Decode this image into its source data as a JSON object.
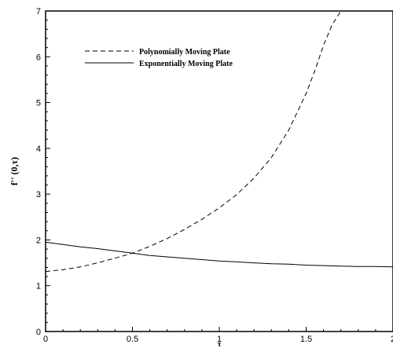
{
  "chart_data": {
    "type": "line",
    "title": "",
    "xlabel": "τ",
    "ylabel": "f'' (0,τ)",
    "xlim": [
      0,
      2
    ],
    "ylim": [
      0,
      7
    ],
    "x_ticks": [
      0,
      0.5,
      1,
      1.5,
      2
    ],
    "x_tick_labels": [
      "0",
      "0.5",
      "1",
      "1.5",
      "2"
    ],
    "y_ticks": [
      0,
      1,
      2,
      3,
      4,
      5,
      6,
      7
    ],
    "y_tick_labels": [
      "0",
      "1",
      "2",
      "3",
      "4",
      "5",
      "6",
      "7"
    ],
    "legend_position": "top-left",
    "series": [
      {
        "name": "Polynomially Moving Plate",
        "style": "dashed",
        "color": "#000000",
        "x": [
          0,
          0.1,
          0.2,
          0.3,
          0.4,
          0.5,
          0.6,
          0.7,
          0.8,
          0.9,
          1.0,
          1.1,
          1.2,
          1.3,
          1.4,
          1.5,
          1.55,
          1.6,
          1.65,
          1.7
        ],
        "y": [
          1.31,
          1.35,
          1.41,
          1.5,
          1.6,
          1.71,
          1.86,
          2.03,
          2.23,
          2.45,
          2.7,
          2.99,
          3.35,
          3.8,
          4.4,
          5.2,
          5.7,
          6.25,
          6.7,
          7.0
        ]
      },
      {
        "name": "Exponentially Moving Plate",
        "style": "solid",
        "color": "#000000",
        "x": [
          0,
          0.1,
          0.2,
          0.3,
          0.4,
          0.5,
          0.6,
          0.7,
          0.8,
          0.9,
          1.0,
          1.1,
          1.2,
          1.3,
          1.4,
          1.5,
          1.6,
          1.7,
          1.8,
          1.9,
          2.0
        ],
        "y": [
          1.95,
          1.9,
          1.85,
          1.81,
          1.76,
          1.71,
          1.66,
          1.63,
          1.6,
          1.57,
          1.54,
          1.52,
          1.5,
          1.48,
          1.47,
          1.45,
          1.44,
          1.43,
          1.42,
          1.42,
          1.41
        ]
      }
    ]
  }
}
